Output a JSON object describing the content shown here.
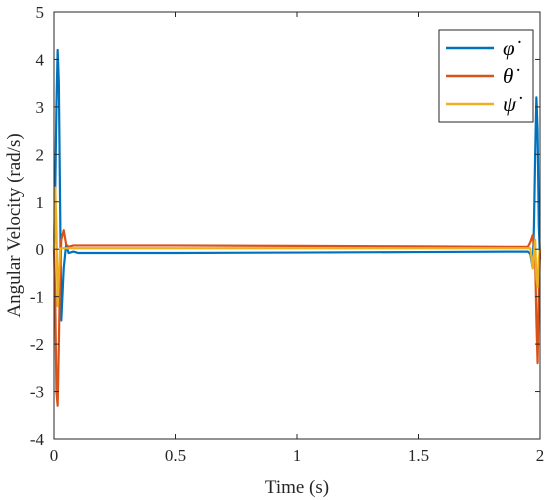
{
  "chart_data": {
    "type": "line",
    "xlabel": "Time (s)",
    "ylabel": "Angular Velocity (rad/s)",
    "xlim": [
      0,
      2
    ],
    "ylim": [
      -4,
      5
    ],
    "xticks": [
      0,
      0.5,
      1,
      1.5,
      2
    ],
    "xtick_labels": [
      "0",
      "0.5",
      "1",
      "1.5",
      "2"
    ],
    "yticks": [
      -4,
      -3,
      -2,
      -1,
      0,
      1,
      2,
      3,
      4,
      5
    ],
    "ytick_labels": [
      "-4",
      "-3",
      "-2",
      "-1",
      "0",
      "1",
      "2",
      "3",
      "4",
      "5"
    ],
    "grid": false,
    "legend_position": "top-right",
    "series": [
      {
        "name": "φ̇",
        "color": "#0072BD",
        "points": [
          [
            0,
            0.0
          ],
          [
            0.005,
            1.2
          ],
          [
            0.01,
            3.0
          ],
          [
            0.015,
            4.2
          ],
          [
            0.02,
            3.5
          ],
          [
            0.025,
            1.0
          ],
          [
            0.03,
            -1.5
          ],
          [
            0.04,
            -0.4
          ],
          [
            0.05,
            0.1
          ],
          [
            0.06,
            -0.08
          ],
          [
            0.08,
            -0.05
          ],
          [
            0.1,
            -0.08
          ],
          [
            0.5,
            -0.08
          ],
          [
            1.0,
            -0.07
          ],
          [
            1.5,
            -0.06
          ],
          [
            1.9,
            -0.05
          ],
          [
            1.95,
            -0.05
          ],
          [
            1.96,
            -0.1
          ],
          [
            1.97,
            -0.4
          ],
          [
            1.975,
            0.5
          ],
          [
            1.98,
            2.0
          ],
          [
            1.985,
            3.2
          ],
          [
            1.99,
            2.5
          ],
          [
            1.995,
            0.5
          ],
          [
            2.0,
            -0.2
          ]
        ]
      },
      {
        "name": "θ̇",
        "color": "#D95319",
        "points": [
          [
            0,
            0.0
          ],
          [
            0.005,
            -1.0
          ],
          [
            0.01,
            -3.0
          ],
          [
            0.015,
            -3.3
          ],
          [
            0.02,
            -2.0
          ],
          [
            0.025,
            -0.5
          ],
          [
            0.03,
            0.2
          ],
          [
            0.04,
            0.4
          ],
          [
            0.05,
            0.1
          ],
          [
            0.06,
            0.05
          ],
          [
            0.08,
            0.08
          ],
          [
            0.1,
            0.08
          ],
          [
            0.5,
            0.08
          ],
          [
            1.0,
            0.07
          ],
          [
            1.5,
            0.06
          ],
          [
            1.9,
            0.05
          ],
          [
            1.95,
            0.05
          ],
          [
            1.96,
            0.15
          ],
          [
            1.97,
            0.3
          ],
          [
            1.98,
            -0.2
          ],
          [
            1.985,
            -1.5
          ],
          [
            1.99,
            -2.4
          ],
          [
            1.995,
            -1.0
          ],
          [
            2.0,
            0.0
          ]
        ]
      },
      {
        "name": "ψ̇",
        "color": "#EDB120",
        "points": [
          [
            0,
            0.0
          ],
          [
            0.005,
            1.3
          ],
          [
            0.01,
            0.5
          ],
          [
            0.015,
            -1.2
          ],
          [
            0.02,
            -0.6
          ],
          [
            0.025,
            0.0
          ],
          [
            0.03,
            0.02
          ],
          [
            0.05,
            0.02
          ],
          [
            0.1,
            0.02
          ],
          [
            0.5,
            0.02
          ],
          [
            1.0,
            0.02
          ],
          [
            1.5,
            0.02
          ],
          [
            1.9,
            0.02
          ],
          [
            1.96,
            0.02
          ],
          [
            1.97,
            -0.4
          ],
          [
            1.98,
            0.2
          ],
          [
            1.985,
            -0.6
          ],
          [
            1.99,
            -0.8
          ],
          [
            1.995,
            -0.2
          ],
          [
            2.0,
            0.0
          ]
        ]
      }
    ]
  }
}
